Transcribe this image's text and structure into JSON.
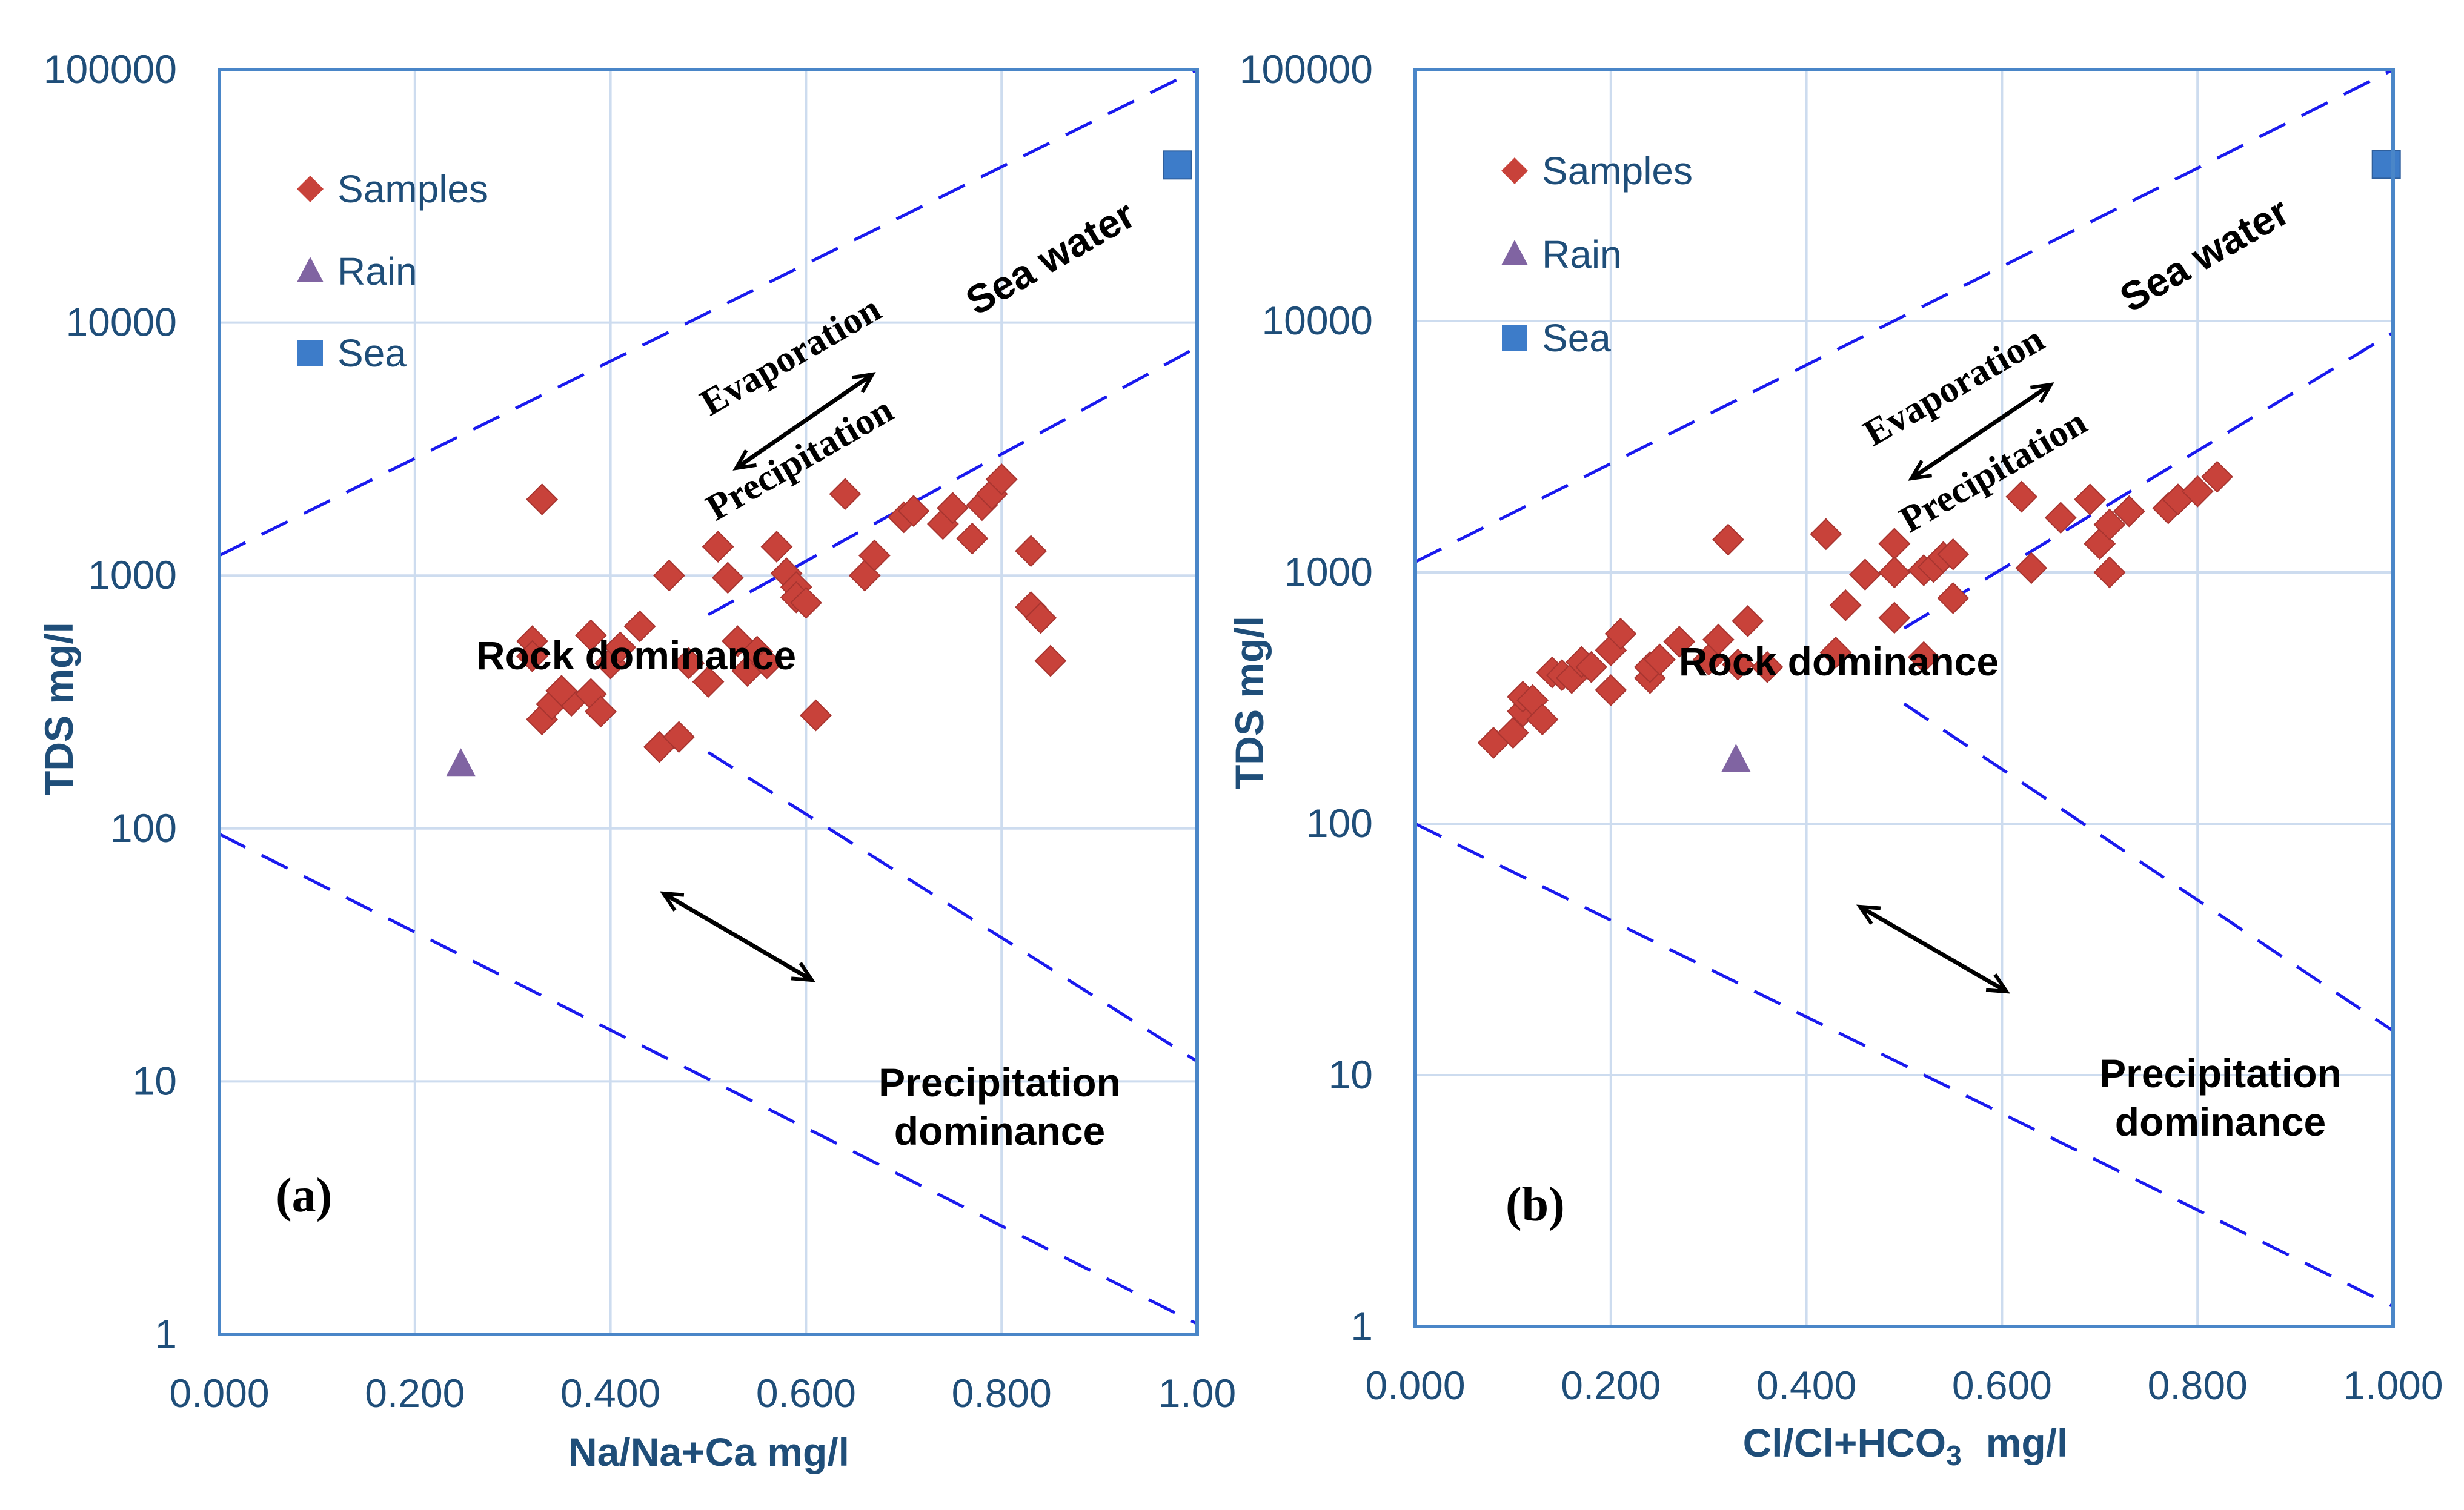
{
  "colors": {
    "axis": "#4a86c8",
    "grid": "#cddcef",
    "tick_text": "#1f4e79",
    "boundary": "#1a1aee",
    "samples": "#c8423a",
    "rain": "#8064a2",
    "sea": "#3d7cc9"
  },
  "chart_data": [
    {
      "type": "scatter",
      "panel_label": "(a)",
      "xlabel": "Na/Na+Ca  mg/l",
      "ylabel": "TDS  mg/l",
      "xlim": [
        0,
        1
      ],
      "ylim": [
        1,
        100000
      ],
      "yscale": "log",
      "grid": true,
      "legend_position": "top-left",
      "x_tick_labels": [
        "0.000",
        "0.200",
        "0.400",
        "0.600",
        "0.800",
        "1.00"
      ],
      "y_tick_labels": [
        "1",
        "10",
        "100",
        "1000",
        "10000",
        "100000"
      ],
      "series": [
        {
          "name": "Samples",
          "marker": "diamond",
          "color": "#c8423a",
          "x": [
            0.32,
            0.33,
            0.33,
            0.34,
            0.36,
            0.38,
            0.38,
            0.39,
            0.4,
            0.41,
            0.43,
            0.45,
            0.46,
            0.47,
            0.48,
            0.5,
            0.51,
            0.52,
            0.53,
            0.54,
            0.55,
            0.56,
            0.57,
            0.58,
            0.59,
            0.59,
            0.6,
            0.61,
            0.64,
            0.66,
            0.67,
            0.7,
            0.71,
            0.74,
            0.75,
            0.77,
            0.78,
            0.79,
            0.8,
            0.83,
            0.83,
            0.84,
            0.85,
            0.32,
            0.35
          ],
          "y": [
            550,
            2000,
            270,
            310,
            320,
            580,
            340,
            290,
            450,
            520,
            630,
            210,
            1000,
            230,
            450,
            380,
            1300,
            980,
            550,
            420,
            500,
            450,
            1300,
            1020,
            900,
            820,
            780,
            280,
            2100,
            1000,
            1200,
            1700,
            1800,
            1600,
            1850,
            1400,
            1900,
            2100,
            2400,
            1250,
            750,
            680,
            460,
            480,
            350
          ]
        },
        {
          "name": "Rain",
          "marker": "triangle",
          "color": "#8064a2",
          "x": [
            0.247
          ],
          "y": [
            180
          ]
        },
        {
          "name": "Sea",
          "marker": "square",
          "color": "#3d7cc9",
          "x": [
            0.98
          ],
          "y": [
            42000
          ]
        }
      ],
      "boundary_lines": [
        {
          "style": "dashed",
          "x": [
            0,
            1
          ],
          "y": [
            1200,
            100000
          ]
        },
        {
          "style": "dashed",
          "x": [
            0,
            1
          ],
          "y": [
            95,
            1.1
          ]
        },
        {
          "style": "dashed",
          "x": [
            0.5,
            1
          ],
          "y": [
            700,
            8000
          ]
        },
        {
          "style": "dashed",
          "x": [
            0.5,
            1
          ],
          "y": [
            200,
            12
          ]
        }
      ],
      "annotations": {
        "evaporation": "Evaporation",
        "precipitation_arrow": "Precipitation",
        "sea_water": "Sea water",
        "rock": "Rock dominance",
        "precip_dom_line1": "Precipitation",
        "precip_dom_line2": "dominance"
      }
    },
    {
      "type": "scatter",
      "panel_label": "(b)",
      "xlabel": "Cl/Cl+HCO",
      "xlabel_subscript": "3",
      "xlabel_unit": "mg/l",
      "ylabel": "TDS  mg/l",
      "xlim": [
        0,
        1
      ],
      "ylim": [
        1,
        100000
      ],
      "yscale": "log",
      "grid": true,
      "legend_position": "top-left",
      "x_tick_labels": [
        "0.000",
        "0.200",
        "0.400",
        "0.600",
        "0.800",
        "1.000"
      ],
      "y_tick_labels": [
        "1",
        "10",
        "100",
        "1000",
        "10000",
        "100000"
      ],
      "series": [
        {
          "name": "Samples",
          "marker": "diamond",
          "color": "#c8423a",
          "x": [
            0.08,
            0.1,
            0.11,
            0.11,
            0.12,
            0.13,
            0.14,
            0.15,
            0.16,
            0.17,
            0.18,
            0.2,
            0.2,
            0.21,
            0.24,
            0.24,
            0.25,
            0.27,
            0.3,
            0.31,
            0.32,
            0.33,
            0.34,
            0.36,
            0.42,
            0.43,
            0.44,
            0.46,
            0.49,
            0.49,
            0.49,
            0.52,
            0.52,
            0.53,
            0.54,
            0.55,
            0.55,
            0.62,
            0.63,
            0.66,
            0.69,
            0.7,
            0.71,
            0.71,
            0.73,
            0.77,
            0.78,
            0.8,
            0.82
          ],
          "y": [
            210,
            230,
            280,
            320,
            310,
            260,
            400,
            390,
            380,
            440,
            420,
            340,
            490,
            570,
            380,
            420,
            450,
            530,
            450,
            540,
            1350,
            430,
            640,
            420,
            1420,
            480,
            740,
            980,
            1300,
            660,
            1000,
            460,
            1020,
            1050,
            1150,
            1180,
            790,
            2000,
            1040,
            1650,
            1950,
            1300,
            1000,
            1550,
            1750,
            1800,
            1950,
            2100,
            2400
          ]
        },
        {
          "name": "Rain",
          "marker": "triangle",
          "color": "#8064a2",
          "x": [
            0.328
          ],
          "y": [
            180
          ]
        },
        {
          "name": "Sea",
          "marker": "square",
          "color": "#3d7cc9",
          "x": [
            0.993
          ],
          "y": [
            42000
          ]
        }
      ],
      "boundary_lines": [
        {
          "style": "dashed",
          "x": [
            0,
            1
          ],
          "y": [
            1100,
            100000
          ]
        },
        {
          "style": "dashed",
          "x": [
            0,
            1
          ],
          "y": [
            100,
            1.2
          ]
        },
        {
          "style": "dashed",
          "x": [
            0.5,
            1
          ],
          "y": [
            600,
            9000
          ]
        },
        {
          "style": "dashed",
          "x": [
            0.5,
            1
          ],
          "y": [
            300,
            15
          ]
        }
      ],
      "annotations": {
        "evaporation": "Evaporation",
        "precipitation_arrow": "Precipitation",
        "sea_water": "Sea water",
        "rock": "Rock dominance",
        "precip_dom_line1": "Precipitation",
        "precip_dom_line2": "dominance"
      }
    }
  ]
}
